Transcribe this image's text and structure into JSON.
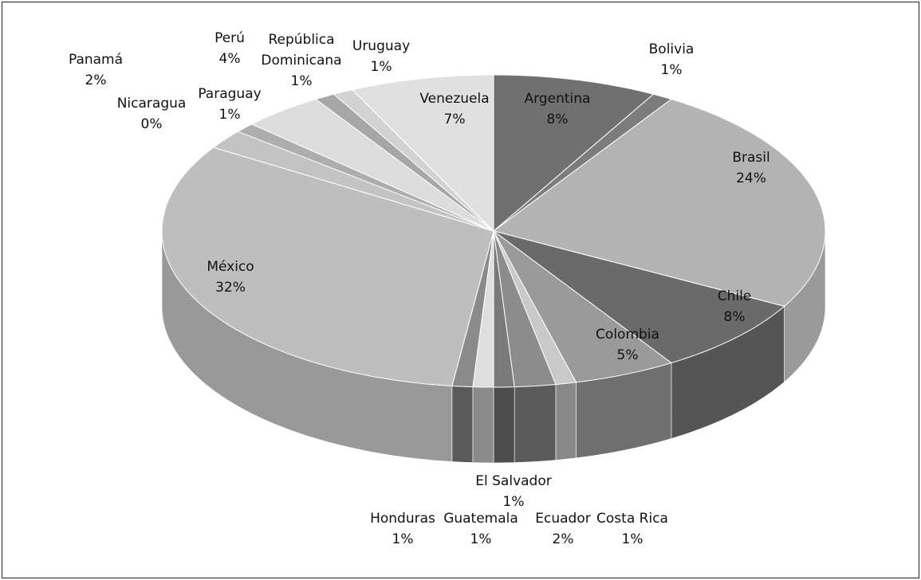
{
  "chart_data": {
    "type": "pie3d",
    "categories": [
      "Argentina",
      "Bolivia",
      "Brasil",
      "Chile",
      "Colombia",
      "Costa Rica",
      "Ecuador",
      "Guatemala",
      "El Salvador",
      "Honduras",
      "México",
      "Nicaragua",
      "Panamá",
      "Paraguay",
      "Perú",
      "República Dominicana",
      "Uruguay",
      "Venezuela"
    ],
    "values": [
      8,
      1,
      24,
      8,
      5,
      1,
      2,
      1,
      1,
      1,
      32,
      0,
      2,
      1,
      4,
      1,
      1,
      7
    ],
    "value_labels": [
      "8%",
      "1%",
      "24%",
      "8%",
      "5%",
      "1%",
      "2%",
      "1%",
      "1%",
      "1%",
      "32%",
      "0%",
      "2%",
      "1%",
      "4%",
      "1%",
      "1%",
      "7%"
    ],
    "colors": [
      "#707070",
      "#7c7c7c",
      "#b3b3b3",
      "#6a6a6a",
      "#9a9a9a",
      "#c9c9c9",
      "#8c8c8c",
      "#7a7a7a",
      "#dedede",
      "#8a8a8a",
      "#bebebe",
      "#cfcfcf",
      "#c3c3c3",
      "#adadad",
      "#dcdcdc",
      "#a6a6a6",
      "#d2d2d2",
      "#e0e0e0"
    ]
  }
}
